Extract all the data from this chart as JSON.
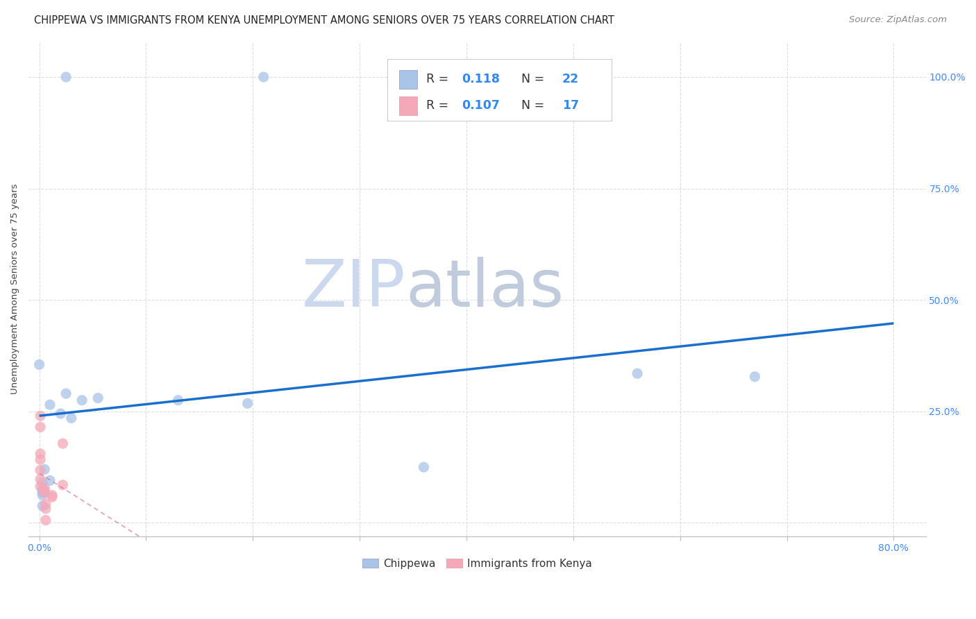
{
  "title": "CHIPPEWA VS IMMIGRANTS FROM KENYA UNEMPLOYMENT AMONG SENIORS OVER 75 YEARS CORRELATION CHART",
  "source": "Source: ZipAtlas.com",
  "ylabel": "Unemployment Among Seniors over 75 years",
  "ytick_values": [
    0.0,
    0.25,
    0.5,
    0.75,
    1.0
  ],
  "ytick_labels": [
    "",
    "25.0%",
    "50.0%",
    "75.0%",
    "100.0%"
  ],
  "xlim": [
    -0.01,
    0.83
  ],
  "ylim": [
    -0.03,
    1.08
  ],
  "chippewa_R": 0.118,
  "chippewa_N": 22,
  "kenya_R": 0.107,
  "kenya_N": 17,
  "chippewa_color": "#aac4e8",
  "kenya_color": "#f4a8b8",
  "trendline_blue_color": "#1a6fcc",
  "trendline_pink_color": "#e07090",
  "watermark_zip_color": "#d0dff0",
  "watermark_atlas_color": "#c8d8e8",
  "background_color": "#ffffff",
  "grid_color": "#dddddd",
  "axis_tick_color": "#4488ff",
  "chippewa_x": [
    0.025,
    0.21,
    0.0,
    0.025,
    0.04,
    0.055,
    0.01,
    0.02,
    0.03,
    0.13,
    0.195,
    0.005,
    0.01,
    0.36,
    0.003,
    0.003,
    0.003,
    0.003,
    0.56,
    0.67,
    0.003,
    0.003
  ],
  "chippewa_y": [
    1.0,
    1.0,
    0.355,
    0.29,
    0.275,
    0.28,
    0.265,
    0.245,
    0.235,
    0.275,
    0.268,
    0.12,
    0.095,
    0.125,
    0.09,
    0.075,
    0.068,
    0.062,
    0.335,
    0.328,
    0.038,
    0.072
  ],
  "kenya_x": [
    0.001,
    0.001,
    0.001,
    0.001,
    0.001,
    0.001,
    0.001,
    0.005,
    0.005,
    0.005,
    0.012,
    0.022,
    0.022,
    0.012,
    0.006,
    0.006,
    0.006
  ],
  "kenya_y": [
    0.24,
    0.215,
    0.155,
    0.142,
    0.118,
    0.098,
    0.082,
    0.078,
    0.072,
    0.068,
    0.062,
    0.178,
    0.085,
    0.058,
    0.042,
    0.032,
    0.006
  ],
  "title_fontsize": 10.5,
  "axis_label_fontsize": 9.5,
  "tick_fontsize": 10,
  "source_fontsize": 9.5,
  "marker_size": 120
}
